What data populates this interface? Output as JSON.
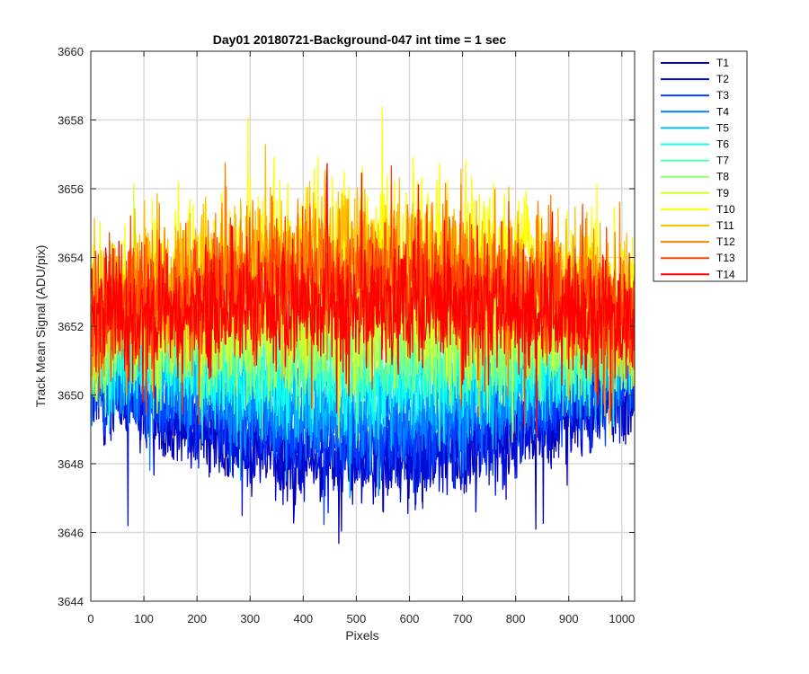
{
  "chart_data": {
    "type": "line",
    "title": "Day01 20180721-Background-047 int time = 1 sec",
    "xlabel": "Pixels",
    "ylabel": "Track Mean Signal (ADU/pix)",
    "xlim": [
      0,
      1024
    ],
    "ylim": [
      3644,
      3660
    ],
    "xticks": [
      0,
      100,
      200,
      300,
      400,
      500,
      600,
      700,
      800,
      900,
      1000
    ],
    "yticks": [
      3644,
      3646,
      3648,
      3650,
      3652,
      3654,
      3656,
      3658,
      3660
    ],
    "grid": true,
    "legend_position": "outside-top-right",
    "n_points": 1024,
    "series": [
      {
        "name": "T1",
        "color": "#0000bf",
        "center_mean": 3648.0,
        "edge_mean": 3650.2,
        "noise_std": 0.65
      },
      {
        "name": "T2",
        "color": "#0010d8",
        "center_mean": 3648.4,
        "edge_mean": 3650.4,
        "noise_std": 0.65
      },
      {
        "name": "T3",
        "color": "#0040ff",
        "center_mean": 3648.9,
        "edge_mean": 3650.6,
        "noise_std": 0.65
      },
      {
        "name": "T4",
        "color": "#0080ff",
        "center_mean": 3649.4,
        "edge_mean": 3650.9,
        "noise_std": 0.65
      },
      {
        "name": "T5",
        "color": "#00bfff",
        "center_mean": 3650.0,
        "edge_mean": 3651.2,
        "noise_std": 0.65
      },
      {
        "name": "T6",
        "color": "#10ffef",
        "center_mean": 3650.5,
        "edge_mean": 3651.4,
        "noise_std": 0.7
      },
      {
        "name": "T7",
        "color": "#50ffaf",
        "center_mean": 3651.0,
        "edge_mean": 3651.6,
        "noise_std": 0.7
      },
      {
        "name": "T8",
        "color": "#8fff70",
        "center_mean": 3651.5,
        "edge_mean": 3651.8,
        "noise_std": 0.75
      },
      {
        "name": "T9",
        "color": "#cfff30",
        "center_mean": 3652.0,
        "edge_mean": 3652.0,
        "noise_std": 0.8
      },
      {
        "name": "T10",
        "color": "#ffff00",
        "center_mean": 3654.3,
        "edge_mean": 3652.7,
        "noise_std": 1.05
      },
      {
        "name": "T11",
        "color": "#ffbf00",
        "center_mean": 3654.0,
        "edge_mean": 3652.6,
        "noise_std": 1.0
      },
      {
        "name": "T12",
        "color": "#ff8000",
        "center_mean": 3653.6,
        "edge_mean": 3652.5,
        "noise_std": 0.95
      },
      {
        "name": "T13",
        "color": "#ff4000",
        "center_mean": 3653.2,
        "edge_mean": 3652.4,
        "noise_std": 0.9
      },
      {
        "name": "T14",
        "color": "#ff0000",
        "center_mean": 3652.6,
        "edge_mean": 3652.2,
        "noise_std": 0.85
      }
    ]
  }
}
